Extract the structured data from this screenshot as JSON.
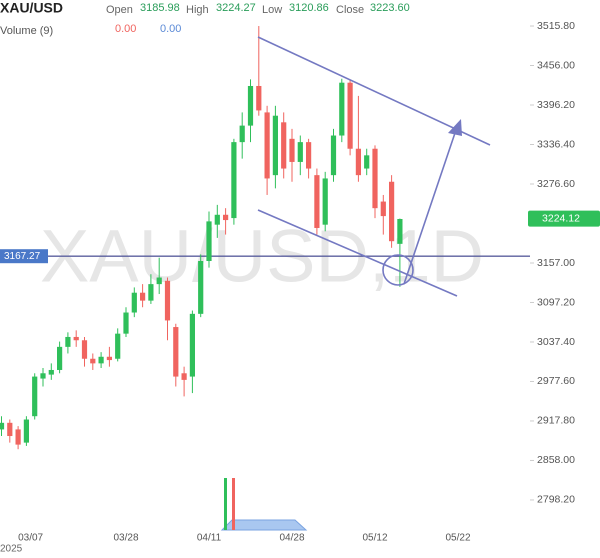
{
  "chart_data": {
    "type": "candlestick",
    "title": "XAU/USD",
    "watermark": "XAU/USD,1D",
    "header": {
      "open_label": "Open",
      "open": "3185.98",
      "high_label": "High",
      "high": "3224.27",
      "low_label": "Low",
      "low": "3120.86",
      "close_label": "Close",
      "close": "3223.60"
    },
    "volume": {
      "label": "Volume (9)",
      "first": "0.00",
      "second": "0.00"
    },
    "categories": [
      null,
      null,
      "03/07",
      null,
      null,
      null,
      null,
      null,
      null,
      null,
      null,
      null,
      null,
      null,
      null,
      "03/28",
      null,
      null,
      null,
      null,
      null,
      null,
      null,
      null,
      null,
      "04/11",
      null,
      null,
      null,
      null,
      null,
      null,
      null,
      null,
      null,
      "04/28",
      null,
      null,
      null,
      null,
      null,
      null,
      null,
      null,
      null,
      "05/12",
      null,
      null,
      null,
      null,
      null,
      null,
      null,
      null,
      null,
      "05/22"
    ],
    "year_label": "2025",
    "open": [
      2905,
      2915,
      2905,
      2885,
      2925,
      2982,
      2988,
      2995,
      3030,
      3045,
      3040,
      3012,
      3005,
      3015,
      3012,
      3050,
      3082,
      3112,
      3100,
      3125,
      3130,
      3060,
      2990,
      2985,
      3080,
      3160,
      3215,
      3230,
      3225,
      3340,
      3365,
      3425,
      3385,
      3290,
      3370,
      3345,
      3310,
      3340,
      3290,
      3215,
      3290,
      3350,
      3430,
      3330,
      3300,
      3330,
      3250,
      3280,
      3185.98,
      null,
      null,
      null,
      null,
      null,
      null,
      null
    ],
    "high": [
      2925,
      2920,
      2910,
      2925,
      2990,
      2998,
      3005,
      3038,
      3052,
      3055,
      3045,
      3020,
      3022,
      3030,
      3058,
      3090,
      3120,
      3125,
      3140,
      3165,
      3135,
      3065,
      3000,
      3085,
      3170,
      3235,
      3245,
      3240,
      3345,
      3385,
      3435,
      3515.8,
      3395,
      3395,
      3385,
      3360,
      3350,
      3345,
      3300,
      3295,
      3360,
      3436,
      3435,
      3410,
      3330,
      3335,
      3260,
      3290,
      3224.27,
      null,
      null,
      null,
      null,
      null,
      null,
      null
    ],
    "low": [
      2895,
      2885,
      2875,
      2880,
      2920,
      2970,
      2980,
      2990,
      3020,
      3030,
      3000,
      2995,
      2998,
      3000,
      3008,
      3045,
      3075,
      3090,
      3095,
      3110,
      3040,
      2970,
      2955,
      2960,
      3075,
      3150,
      3195,
      3200,
      3215,
      3315,
      3340,
      3380,
      3260,
      3270,
      3285,
      3280,
      3290,
      3285,
      3200,
      3205,
      3280,
      3340,
      3320,
      3280,
      3290,
      3225,
      3200,
      3180,
      3120.86,
      null,
      null,
      null,
      null,
      null,
      null,
      null
    ],
    "close": [
      2915,
      2895,
      2882,
      2920,
      2985,
      2990,
      2995,
      3030,
      3045,
      3040,
      3012,
      3005,
      3015,
      3010,
      3050,
      3082,
      3112,
      3100,
      3125,
      3135,
      3070,
      2985,
      2980,
      3080,
      3160,
      3220,
      3230,
      3222,
      3340,
      3365,
      3425,
      3388,
      3285,
      3380,
      3300,
      3310,
      3340,
      3300,
      3210,
      3285,
      3350,
      3430,
      3330,
      3290,
      3320,
      3240,
      3228,
      3190,
      3223.6,
      null,
      null,
      null,
      null,
      null,
      null,
      null
    ],
    "up_color": "#2fbf5a",
    "down_color": "#f0645f",
    "ylim": [
      2752.7,
      3555.2
    ],
    "yticks": [
      {
        "value": 3515.8,
        "label": "3515.80"
      },
      {
        "value": 3456,
        "label": "3456.00"
      },
      {
        "value": 3396.2,
        "label": "3396.20"
      },
      {
        "value": 3336.4,
        "label": "3336.40"
      },
      {
        "value": 3276.6,
        "label": "3276.60"
      },
      {
        "value": 3157,
        "label": "3157.00"
      },
      {
        "value": 3097.2,
        "label": "3097.20"
      },
      {
        "value": 3037.4,
        "label": "3037.40"
      },
      {
        "value": 2977.6,
        "label": "2977.60"
      },
      {
        "value": 2917.8,
        "label": "2917.80"
      },
      {
        "value": 2858,
        "label": "2858.00"
      },
      {
        "value": 2798.2,
        "label": "2798.20"
      }
    ],
    "price_line": 3167.27,
    "last_price": 3224.12
  }
}
